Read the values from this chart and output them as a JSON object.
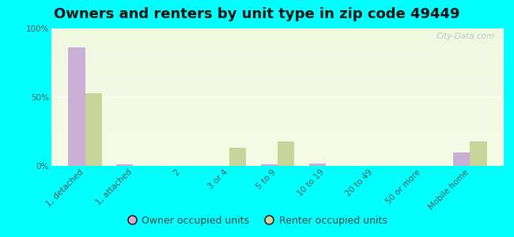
{
  "title": "Owners and renters by unit type in zip code 49449",
  "categories": [
    "1, detached",
    "1, attached",
    "2",
    "3 or 4",
    "5 to 9",
    "10 to 19",
    "20 to 49",
    "50 or more",
    "Mobile home"
  ],
  "owner_values": [
    86,
    1,
    0,
    0,
    1,
    2,
    0,
    0,
    10
  ],
  "renter_values": [
    53,
    0,
    0,
    13,
    18,
    0,
    0,
    0,
    18
  ],
  "owner_color": "#c9aed6",
  "renter_color": "#c8d49a",
  "outer_bg": "#00ffff",
  "ylim": [
    0,
    100
  ],
  "yticks": [
    0,
    50,
    100
  ],
  "ytick_labels": [
    "0%",
    "50%",
    "100%"
  ],
  "bar_width": 0.35,
  "legend_owner": "Owner occupied units",
  "legend_renter": "Renter occupied units",
  "watermark": "City-Data.com",
  "title_fontsize": 13,
  "tick_fontsize": 7.5,
  "legend_fontsize": 9
}
